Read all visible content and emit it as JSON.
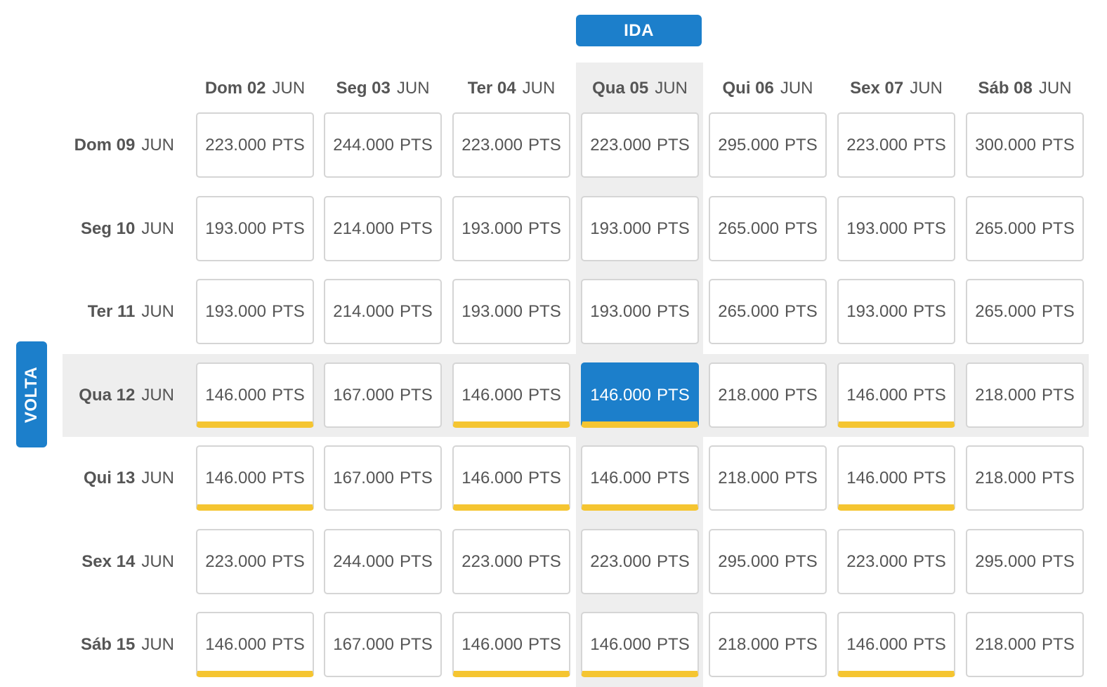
{
  "outbound_label": "IDA",
  "return_label": "VOLTA",
  "unit": "PTS",
  "outbound_dates": [
    {
      "day": "Dom 02",
      "month": "JUN"
    },
    {
      "day": "Seg 03",
      "month": "JUN"
    },
    {
      "day": "Ter 04",
      "month": "JUN"
    },
    {
      "day": "Qua 05",
      "month": "JUN"
    },
    {
      "day": "Qui 06",
      "month": "JUN"
    },
    {
      "day": "Sex 07",
      "month": "JUN"
    },
    {
      "day": "Sáb 08",
      "month": "JUN"
    }
  ],
  "return_dates": [
    {
      "day": "Dom 09",
      "month": "JUN"
    },
    {
      "day": "Seg 10",
      "month": "JUN"
    },
    {
      "day": "Ter 11",
      "month": "JUN"
    },
    {
      "day": "Qua 12",
      "month": "JUN"
    },
    {
      "day": "Qui 13",
      "month": "JUN"
    },
    {
      "day": "Sex 14",
      "month": "JUN"
    },
    {
      "day": "Sáb 15",
      "month": "JUN"
    }
  ],
  "prices": [
    [
      "223.000",
      "244.000",
      "223.000",
      "223.000",
      "295.000",
      "223.000",
      "300.000"
    ],
    [
      "193.000",
      "214.000",
      "193.000",
      "193.000",
      "265.000",
      "193.000",
      "265.000"
    ],
    [
      "193.000",
      "214.000",
      "193.000",
      "193.000",
      "265.000",
      "193.000",
      "265.000"
    ],
    [
      "146.000",
      "167.000",
      "146.000",
      "146.000",
      "218.000",
      "146.000",
      "218.000"
    ],
    [
      "146.000",
      "167.000",
      "146.000",
      "146.000",
      "218.000",
      "146.000",
      "218.000"
    ],
    [
      "223.000",
      "244.000",
      "223.000",
      "223.000",
      "295.000",
      "223.000",
      "295.000"
    ],
    [
      "146.000",
      "167.000",
      "146.000",
      "146.000",
      "218.000",
      "146.000",
      "218.000"
    ]
  ],
  "selected": {
    "outbound_index": 3,
    "return_index": 3
  },
  "lowest_price_marked": "146.000",
  "colors": {
    "accent": "#1c7fcb",
    "lowest_price_bar": "#f5c531",
    "highlight_background": "#eeeeee"
  }
}
